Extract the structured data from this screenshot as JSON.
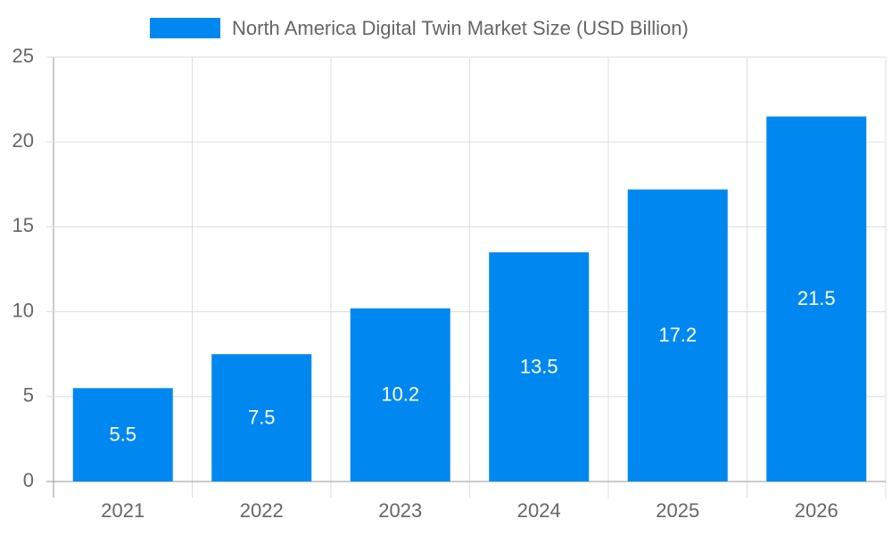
{
  "chart_data": {
    "type": "bar",
    "legend_position": "top",
    "categories": [
      "2021",
      "2022",
      "2023",
      "2024",
      "2025",
      "2026"
    ],
    "series": [
      {
        "name": "North America Digital Twin Market Size (USD Billion)",
        "color": "#0088f0",
        "values": [
          5.5,
          7.5,
          10.2,
          13.5,
          17.2,
          21.5
        ]
      }
    ],
    "ylim": [
      0,
      25
    ],
    "yticks": [
      0,
      5,
      10,
      15,
      20,
      25
    ],
    "grid": true
  }
}
